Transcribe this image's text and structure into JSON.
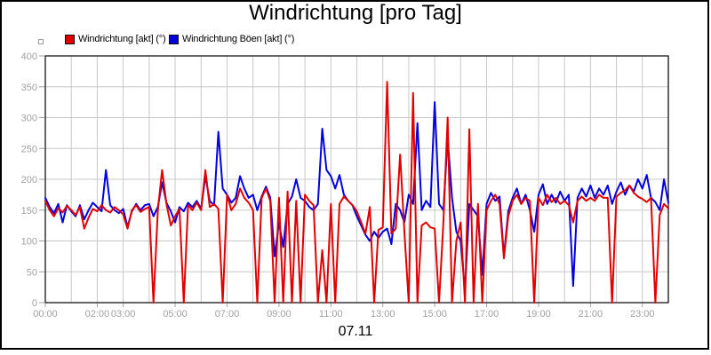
{
  "window": {
    "title": "Windrichtung [pro Tag]"
  },
  "legend": {
    "items": [
      {
        "label": "Windrichtung [akt] (°)",
        "color": "#e10000"
      },
      {
        "label": "Windrichtung Böen [akt] (°)",
        "color": "#0000e0"
      }
    ]
  },
  "chart_data": {
    "type": "line",
    "title": "Windrichtung [pro Tag]",
    "xlabel": "07.11",
    "ylabel": "",
    "x_unit": "time of day (hours)",
    "x_range": [
      0,
      24
    ],
    "ylim": [
      0,
      400
    ],
    "grid": "on (hourly vertical, 50-step horizontal)",
    "legend_position": "top-left",
    "colors": {
      "grid": "#c8c8c8",
      "tick": "#a0a0a0",
      "tick_label": "#a0a0a0",
      "plot_border": "#000000"
    },
    "y_ticks": [
      0,
      50,
      100,
      150,
      200,
      250,
      300,
      350,
      400
    ],
    "x_ticks": [
      {
        "h": 0,
        "label": "00:00"
      },
      {
        "h": 2,
        "label": "02:00"
      },
      {
        "h": 3,
        "label": "03:00"
      },
      {
        "h": 5,
        "label": "05:00"
      },
      {
        "h": 7,
        "label": "07:00"
      },
      {
        "h": 9,
        "label": "09:00"
      },
      {
        "h": 11,
        "label": "11:00"
      },
      {
        "h": 13,
        "label": "13:00"
      },
      {
        "h": 15,
        "label": "15:00"
      },
      {
        "h": 17,
        "label": "17:00"
      },
      {
        "h": 19,
        "label": "19:00"
      },
      {
        "h": 21,
        "label": "21:00"
      },
      {
        "h": 23,
        "label": "23:00"
      }
    ],
    "series": [
      {
        "name": "Windrichtung [akt] (°)",
        "color": "#e10000",
        "step_minutes": 10,
        "values": [
          165,
          150,
          140,
          153,
          146,
          157,
          150,
          142,
          155,
          120,
          138,
          152,
          148,
          158,
          150,
          146,
          155,
          150,
          143,
          120,
          150,
          158,
          147,
          152,
          155,
          0,
          150,
          215,
          160,
          125,
          140,
          152,
          0,
          158,
          150,
          162,
          150,
          215,
          155,
          160,
          152,
          0,
          175,
          150,
          160,
          185,
          170,
          162,
          150,
          0,
          170,
          185,
          165,
          0,
          170,
          0,
          180,
          0,
          165,
          0,
          175,
          165,
          158,
          0,
          85,
          0,
          160,
          0,
          160,
          172,
          165,
          158,
          148,
          130,
          112,
          155,
          0,
          118,
          122,
          358,
          112,
          120,
          240,
          115,
          0,
          340,
          0,
          125,
          130,
          122,
          120,
          0,
          130,
          300,
          0,
          100,
          130,
          0,
          281,
          0,
          160,
          0,
          150,
          165,
          175,
          160,
          72,
          140,
          165,
          175,
          160,
          170,
          165,
          0,
          170,
          158,
          175,
          163,
          170,
          160,
          165,
          158,
          130,
          165,
          172,
          165,
          170,
          165,
          175,
          170,
          170,
          0,
          172,
          178,
          182,
          190,
          178,
          172,
          168,
          163,
          170,
          0,
          142,
          160,
          153
        ]
      },
      {
        "name": "Windrichtung Böen [akt] (°)",
        "color": "#0000e0",
        "step_minutes": 10,
        "values": [
          170,
          155,
          145,
          160,
          130,
          158,
          148,
          140,
          158,
          135,
          150,
          162,
          155,
          148,
          215,
          158,
          150,
          145,
          152,
          123,
          148,
          160,
          150,
          158,
          160,
          140,
          155,
          195,
          162,
          148,
          130,
          155,
          148,
          162,
          155,
          165,
          152,
          205,
          165,
          158,
          277,
          185,
          175,
          162,
          170,
          205,
          185,
          170,
          175,
          150,
          172,
          188,
          170,
          75,
          130,
          90,
          160,
          172,
          200,
          170,
          165,
          155,
          150,
          160,
          282,
          215,
          205,
          185,
          207,
          175,
          165,
          158,
          140,
          125,
          110,
          100,
          115,
          105,
          115,
          120,
          95,
          160,
          150,
          130,
          175,
          160,
          291,
          150,
          165,
          155,
          325,
          160,
          150,
          267,
          170,
          115,
          100,
          20,
          160,
          150,
          140,
          45,
          160,
          178,
          165,
          172,
          75,
          148,
          170,
          185,
          160,
          175,
          150,
          115,
          175,
          192,
          160,
          175,
          162,
          180,
          165,
          175,
          27,
          170,
          185,
          172,
          190,
          170,
          185,
          175,
          190,
          160,
          180,
          195,
          175,
          190,
          180,
          200,
          185,
          207,
          170,
          163,
          150,
          200,
          162
        ]
      }
    ]
  }
}
